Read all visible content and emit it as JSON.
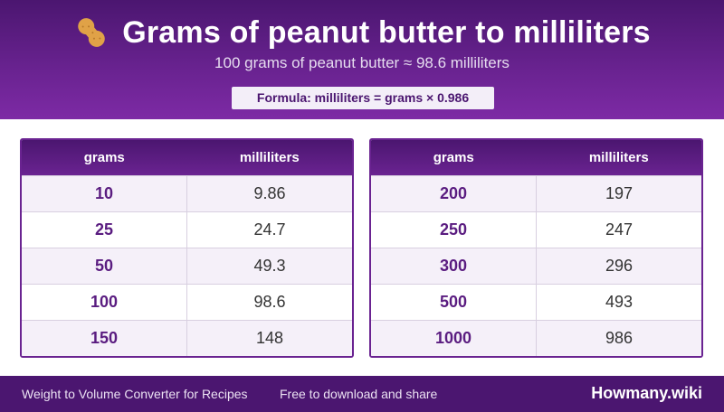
{
  "header": {
    "icon": "peanut-icon",
    "title": "Grams of peanut butter to milliliters",
    "subtitle": "100 grams of peanut butter ≈ 98.6 milliliters",
    "formula": "Formula: milliliters = grams × 0.986"
  },
  "tables": [
    {
      "headers": {
        "grams": "grams",
        "ml": "milliliters"
      },
      "rows": [
        {
          "grams": "10",
          "ml": "9.86"
        },
        {
          "grams": "25",
          "ml": "24.7"
        },
        {
          "grams": "50",
          "ml": "49.3"
        },
        {
          "grams": "100",
          "ml": "98.6"
        },
        {
          "grams": "150",
          "ml": "148"
        }
      ]
    },
    {
      "headers": {
        "grams": "grams",
        "ml": "milliliters"
      },
      "rows": [
        {
          "grams": "200",
          "ml": "197"
        },
        {
          "grams": "250",
          "ml": "247"
        },
        {
          "grams": "300",
          "ml": "296"
        },
        {
          "grams": "500",
          "ml": "493"
        },
        {
          "grams": "1000",
          "ml": "986"
        }
      ]
    }
  ],
  "footer": {
    "description": "Weight to Volume Converter for Recipes",
    "share": "Free to download and share",
    "brand": "Howmany.wiki"
  },
  "colors": {
    "brand_purple": "#4b1670",
    "accent_purple": "#6a2391",
    "peanut": "#e0a247"
  }
}
